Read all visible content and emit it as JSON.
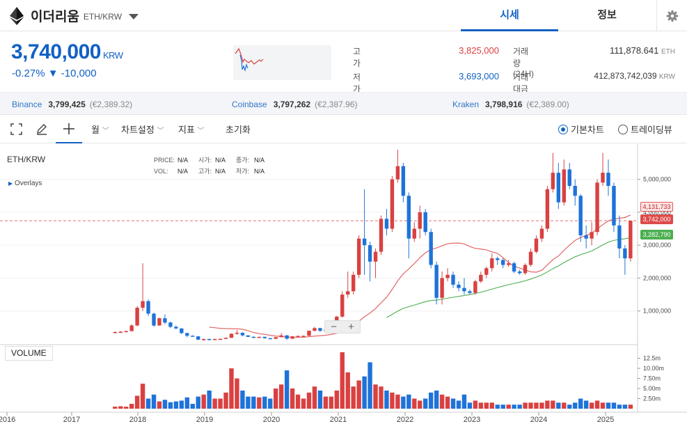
{
  "header": {
    "coin_name": "이더리움",
    "pair": "ETH/KRW",
    "tabs": [
      {
        "label": "시세",
        "active": true
      },
      {
        "label": "정보",
        "active": false
      }
    ]
  },
  "ticker": {
    "price": "3,740,000",
    "unit": "KRW",
    "change_rate": "-0.27%",
    "change_arrow": "▼",
    "change_amount": "-10,000",
    "high_label": "고가",
    "high_value": "3,825,000",
    "low_label": "저가",
    "low_value": "3,693,000",
    "vol_label": "거래량(24H)",
    "vol_value": "111,878.641",
    "vol_unit": "ETH",
    "amt_label": "거래대금(24H)",
    "amt_value": "412,873,742,039",
    "amt_unit": "KRW"
  },
  "exchanges": [
    {
      "name": "Binance",
      "price": "3,799,425",
      "eur": "(€2,389.32)"
    },
    {
      "name": "Coinbase",
      "price": "3,797,262",
      "eur": "(€2,387.96)"
    },
    {
      "name": "Kraken",
      "price": "3,798,916",
      "eur": "(€2,389.00)"
    }
  ],
  "toolbar": {
    "interval": "월",
    "chart_settings": "차트설정",
    "indicators": "지표",
    "reset": "초기화",
    "basic_chart": "기본차트",
    "tradingview": "트레이딩뷰"
  },
  "chart_panel": {
    "symbol": "ETH/KRW",
    "overlays": "Overlays",
    "legend": {
      "price_label": "PRICE:",
      "price": "N/A",
      "open_label": "시가:",
      "open": "N/A",
      "close_label": "종가:",
      "close": "N/A",
      "vol_label": "VOL:",
      "vol": "N/A",
      "high_label": "고가:",
      "high": "N/A",
      "low_label": "저가:",
      "low": "N/A"
    },
    "volume_label": "VOLUME",
    "price_ticks": [
      "5,000,000",
      "4,000,000",
      "3,000,000",
      "2,000,000",
      "1,000,000"
    ],
    "volume_ticks": [
      "12.5m",
      "10.00m",
      "7.50m",
      "5.00m",
      "2.50m"
    ],
    "year_ticks": [
      "2016",
      "2017",
      "2018",
      "2019",
      "2020",
      "2021",
      "2022",
      "2023",
      "2024",
      "2025"
    ],
    "tags": [
      {
        "value": "4,131,733",
        "color": "#fbe4e4",
        "text": "#c62828",
        "border": "#e05757"
      },
      {
        "value": "3,742,000",
        "color": "#dd4b4b",
        "text": "#ffffff",
        "border": "#dd4b4b"
      },
      {
        "value": "3,282,790",
        "color": "#4caf50",
        "text": "#ffffff",
        "border": "#4caf50"
      }
    ]
  },
  "colors": {
    "up": "#d94141",
    "down": "#1e73d9",
    "accent": "#1261c4",
    "ma_long": "#4caf50",
    "ma_short": "#e05757"
  },
  "chart_data": {
    "type": "candlestick",
    "interval": "monthly",
    "y_unit": "KRW",
    "ylim": [
      0,
      5900000
    ],
    "months": [
      "2017-08",
      "2017-09",
      "2017-10",
      "2017-11",
      "2017-12",
      "2018-01",
      "2018-02",
      "2018-03",
      "2018-04",
      "2018-05",
      "2018-06",
      "2018-07",
      "2018-08",
      "2018-09",
      "2018-10",
      "2018-11",
      "2018-12",
      "2019-01",
      "2019-02",
      "2019-03",
      "2019-04",
      "2019-05",
      "2019-06",
      "2019-07",
      "2019-08",
      "2019-09",
      "2019-10",
      "2019-11",
      "2019-12",
      "2020-01",
      "2020-02",
      "2020-03",
      "2020-04",
      "2020-05",
      "2020-06",
      "2020-07",
      "2020-08",
      "2020-09",
      "2020-10",
      "2020-11",
      "2020-12",
      "2021-01",
      "2021-02",
      "2021-03",
      "2021-04",
      "2021-05",
      "2021-06",
      "2021-07",
      "2021-08",
      "2021-09",
      "2021-10",
      "2021-11",
      "2021-12",
      "2022-01",
      "2022-02",
      "2022-03",
      "2022-04",
      "2022-05",
      "2022-06",
      "2022-07",
      "2022-08",
      "2022-09",
      "2022-10",
      "2022-11",
      "2022-12",
      "2023-01",
      "2023-02",
      "2023-03",
      "2023-04",
      "2023-05",
      "2023-06",
      "2023-07",
      "2023-08",
      "2023-09",
      "2023-10",
      "2023-11",
      "2023-12",
      "2024-01",
      "2024-02",
      "2024-03",
      "2024-04",
      "2024-05",
      "2024-06",
      "2024-07",
      "2024-08",
      "2024-09",
      "2024-10",
      "2024-11",
      "2024-12",
      "2025-01",
      "2025-02",
      "2025-03",
      "2025-04",
      "2025-05"
    ],
    "ohlc": [
      [
        350000,
        380000,
        340000,
        360000
      ],
      [
        360000,
        390000,
        330000,
        370000
      ],
      [
        370000,
        400000,
        350000,
        390000
      ],
      [
        390000,
        600000,
        380000,
        560000
      ],
      [
        560000,
        1150000,
        540000,
        1100000
      ],
      [
        1100000,
        2450000,
        1000000,
        1300000
      ],
      [
        1300000,
        1350000,
        850000,
        920000
      ],
      [
        920000,
        950000,
        520000,
        560000
      ],
      [
        560000,
        800000,
        550000,
        780000
      ],
      [
        780000,
        900000,
        600000,
        650000
      ],
      [
        650000,
        680000,
        480000,
        520000
      ],
      [
        520000,
        560000,
        450000,
        470000
      ],
      [
        470000,
        480000,
        300000,
        330000
      ],
      [
        330000,
        340000,
        200000,
        250000
      ],
      [
        250000,
        260000,
        220000,
        230000
      ],
      [
        230000,
        240000,
        120000,
        130000
      ],
      [
        130000,
        160000,
        95000,
        150000
      ],
      [
        150000,
        160000,
        110000,
        125000
      ],
      [
        125000,
        160000,
        115000,
        150000
      ],
      [
        150000,
        165000,
        140000,
        155000
      ],
      [
        155000,
        200000,
        150000,
        185000
      ],
      [
        185000,
        320000,
        180000,
        310000
      ],
      [
        310000,
        420000,
        280000,
        340000
      ],
      [
        340000,
        350000,
        230000,
        260000
      ],
      [
        260000,
        260000,
        210000,
        215000
      ],
      [
        215000,
        230000,
        180000,
        210000
      ],
      [
        210000,
        220000,
        180000,
        215000
      ],
      [
        215000,
        220000,
        160000,
        175000
      ],
      [
        175000,
        180000,
        150000,
        155000
      ],
      [
        155000,
        210000,
        150000,
        205000
      ],
      [
        205000,
        330000,
        200000,
        260000
      ],
      [
        260000,
        270000,
        120000,
        160000
      ],
      [
        160000,
        240000,
        150000,
        230000
      ],
      [
        230000,
        260000,
        220000,
        240000
      ],
      [
        240000,
        260000,
        225000,
        245000
      ],
      [
        245000,
        410000,
        240000,
        400000
      ],
      [
        400000,
        520000,
        380000,
        480000
      ],
      [
        480000,
        490000,
        360000,
        400000
      ],
      [
        400000,
        450000,
        380000,
        430000
      ],
      [
        430000,
        700000,
        420000,
        690000
      ],
      [
        690000,
        850000,
        600000,
        830000
      ],
      [
        830000,
        1600000,
        800000,
        1500000
      ],
      [
        1500000,
        2200000,
        1400000,
        1600000
      ],
      [
        1600000,
        2200000,
        1500000,
        2100000
      ],
      [
        2100000,
        3300000,
        2000000,
        3200000
      ],
      [
        3200000,
        4700000,
        2100000,
        3000000
      ],
      [
        3000000,
        3100000,
        1900000,
        2500000
      ],
      [
        2500000,
        2900000,
        2000000,
        2800000
      ],
      [
        2800000,
        3900000,
        2700000,
        3800000
      ],
      [
        3800000,
        4100000,
        3300000,
        3500000
      ],
      [
        3500000,
        5100000,
        3400000,
        5000000
      ],
      [
        5000000,
        5900000,
        4900000,
        5400000
      ],
      [
        5400000,
        5500000,
        4300000,
        4500000
      ],
      [
        4500000,
        4600000,
        2600000,
        3200000
      ],
      [
        3200000,
        3700000,
        3100000,
        3500000
      ],
      [
        3500000,
        4200000,
        3200000,
        4000000
      ],
      [
        4000000,
        4100000,
        3300000,
        3400000
      ],
      [
        3400000,
        3500000,
        2300000,
        2400000
      ],
      [
        2400000,
        2500000,
        1200000,
        1400000
      ],
      [
        1400000,
        2200000,
        1200000,
        2000000
      ],
      [
        2000000,
        2300000,
        1900000,
        2100000
      ],
      [
        2100000,
        2200000,
        1700000,
        1800000
      ],
      [
        1800000,
        1900000,
        1600000,
        1700000
      ],
      [
        1700000,
        2000000,
        1500000,
        1600000
      ],
      [
        1600000,
        1650000,
        1500000,
        1550000
      ],
      [
        1550000,
        1950000,
        1500000,
        1900000
      ],
      [
        1900000,
        2200000,
        1850000,
        2100000
      ],
      [
        2100000,
        2350000,
        2000000,
        2300000
      ],
      [
        2300000,
        2750000,
        2200000,
        2600000
      ],
      [
        2600000,
        2650000,
        2400000,
        2550000
      ],
      [
        2550000,
        2600000,
        2300000,
        2400000
      ],
      [
        2400000,
        2550000,
        2350000,
        2450000
      ],
      [
        2450000,
        2500000,
        2150000,
        2200000
      ],
      [
        2200000,
        2250000,
        2100000,
        2150000
      ],
      [
        2150000,
        2450000,
        2100000,
        2400000
      ],
      [
        2400000,
        2900000,
        2350000,
        2800000
      ],
      [
        2800000,
        3300000,
        2750000,
        3200000
      ],
      [
        3200000,
        3600000,
        3100000,
        3500000
      ],
      [
        3500000,
        4800000,
        3400000,
        4700000
      ],
      [
        4700000,
        5800000,
        4600000,
        5200000
      ],
      [
        5200000,
        5500000,
        4100000,
        4300000
      ],
      [
        4300000,
        5600000,
        4200000,
        5300000
      ],
      [
        5300000,
        5500000,
        4700000,
        4800000
      ],
      [
        4800000,
        5000000,
        4200000,
        4500000
      ],
      [
        4500000,
        4550000,
        3100000,
        3300000
      ],
      [
        3300000,
        3600000,
        2900000,
        3200000
      ],
      [
        3200000,
        3700000,
        3000000,
        3400000
      ],
      [
        3400000,
        5000000,
        3300000,
        4900000
      ],
      [
        4900000,
        5800000,
        4800000,
        5200000
      ],
      [
        5200000,
        5600000,
        4500000,
        4800000
      ],
      [
        4800000,
        4900000,
        3400000,
        3600000
      ],
      [
        3600000,
        3900000,
        2600000,
        2900000
      ],
      [
        2900000,
        3000000,
        2100000,
        2600000
      ],
      [
        2600000,
        3700000,
        2500000,
        3742000
      ]
    ],
    "volume": [
      0.5,
      0.6,
      0.5,
      1.2,
      3.2,
      6.2,
      2.5,
      3.5,
      1.8,
      2.2,
      1.6,
      1.8,
      2.0,
      2.8,
      1.2,
      3.0,
      3.5,
      4.5,
      2.5,
      2.5,
      4.0,
      10.0,
      7.5,
      4.5,
      3.0,
      3.0,
      2.8,
      3.0,
      2.5,
      5.0,
      6.0,
      9.5,
      5.0,
      3.5,
      2.5,
      4.0,
      5.5,
      4.5,
      3.0,
      3.0,
      4.5,
      14.0,
      9.0,
      5.5,
      7.0,
      8.0,
      11.5,
      6.0,
      5.5,
      4.5,
      4.0,
      3.5,
      3.0,
      3.5,
      2.5,
      2.0,
      2.5,
      4.0,
      4.5,
      3.5,
      3.0,
      2.5,
      2.0,
      3.5,
      1.5,
      2.0,
      1.5,
      1.5,
      1.5,
      1.0,
      1.0,
      1.0,
      1.0,
      1.0,
      1.5,
      1.5,
      1.5,
      1.5,
      2.0,
      2.0,
      1.5,
      1.5,
      1.0,
      1.5,
      2.5,
      2.0,
      1.5,
      2.0,
      1.5,
      1.5,
      1.5,
      1.0,
      1.0,
      1.0
    ],
    "vlim": [
      0,
      14.5
    ],
    "ma_short_start": "2019-01",
    "ma_long_start": "2021-09",
    "current_price": 3742000
  }
}
